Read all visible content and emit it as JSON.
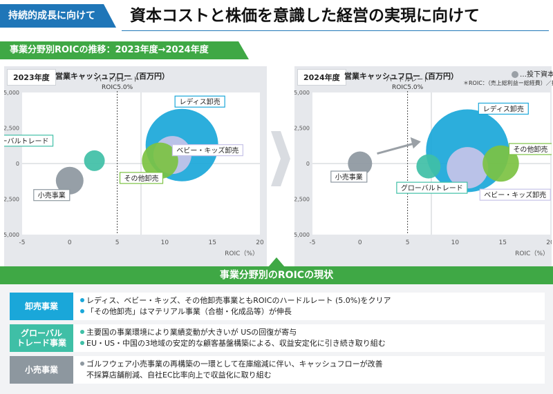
{
  "header": {
    "tag": "持続的成長に向けて",
    "title": "資本コストと株価を意識した経営の実現に向けて"
  },
  "section_title": "事業分野別ROICの推移：2023年度→2024年度",
  "legend": {
    "label": "…投下資本",
    "note": "＊ROIC：（売上総利益ー総経費）／投下資本"
  },
  "chart_data": [
    {
      "type": "scatter",
      "subtype": "bubble",
      "year_label": "2023年度",
      "ylabel": "営業キャッシュフロー（百万円）",
      "xlabel": "ROIC（%）",
      "xlim": [
        -5,
        20
      ],
      "ylim": [
        -5000,
        5000
      ],
      "xticks": [
        "-5",
        "0",
        "5",
        "10",
        "15",
        "20"
      ],
      "yticks": [
        "5,000",
        "2,500",
        "0",
        "-2,500",
        "-5,000"
      ],
      "hurdle": {
        "label1": "ハードルレート",
        "label2": "ROIC5.0%",
        "x": 5
      },
      "series": [
        {
          "name": "レディス卸売",
          "x": 11.8,
          "y": 1300,
          "size": 4.2,
          "color": "#1aa7d9"
        },
        {
          "name": "ベビー・キッズ卸売",
          "x": 10.8,
          "y": 600,
          "size": 2.2,
          "color": "#c7c3e8"
        },
        {
          "name": "その他卸売",
          "x": 9.5,
          "y": 200,
          "size": 2.1,
          "color": "#7cc242"
        },
        {
          "name": "グローバルトレード",
          "x": 2.6,
          "y": 200,
          "size": 1.2,
          "color": "#3fbfa6"
        },
        {
          "name": "小売事業",
          "x": 0,
          "y": -1200,
          "size": 1.6,
          "color": "#8d979f"
        }
      ]
    },
    {
      "type": "scatter",
      "subtype": "bubble",
      "year_label": "2024年度",
      "ylabel": "営業キャッシュフロー（百万円）",
      "xlabel": "ROIC（%）",
      "xlim": [
        -5,
        20
      ],
      "ylim": [
        -5000,
        5000
      ],
      "xticks": [
        "-5",
        "0",
        "5",
        "10",
        "15",
        "20"
      ],
      "yticks": [
        "5,000",
        "2,500",
        "0",
        "-2,500",
        "-5,000"
      ],
      "hurdle": {
        "label1": "ハードルレート",
        "label2": "ROIC5.0%",
        "x": 5
      },
      "series": [
        {
          "name": "レディス卸売",
          "x": 11.3,
          "y": 900,
          "size": 4.8,
          "color": "#1aa7d9"
        },
        {
          "name": "ベビー・キッズ卸売",
          "x": 11.3,
          "y": -300,
          "size": 2.4,
          "color": "#c7c3e8"
        },
        {
          "name": "その他卸売",
          "x": 14.8,
          "y": 0,
          "size": 2.1,
          "color": "#7cc242"
        },
        {
          "name": "グローバルトレード",
          "x": 7.2,
          "y": -200,
          "size": 1.4,
          "color": "#3fbfa6"
        },
        {
          "name": "小売事業",
          "x": 0,
          "y": 0,
          "size": 1.4,
          "color": "#8d979f"
        }
      ]
    }
  ],
  "status": {
    "title": "事業分野別のROICの現状",
    "rows": [
      {
        "label": "卸売事業",
        "color": "#1aa7d9",
        "lines": [
          "レディス、ベビー・キッズ、その他卸売事業ともROICのハードルレート (5.0%)をクリア",
          "「その他卸売」はマテリアル事業（合樹・化成品等）が伸長"
        ]
      },
      {
        "label": "グローバル トレード事業",
        "label_lines": [
          "グローバル",
          "トレード事業"
        ],
        "color": "#3fbfa6",
        "lines": [
          "主要国の事業環境により業績変動が大きいが USの回復が寄与",
          "EU・US・中国の3地域の安定的な顧客基盤構築による、収益安定化に引き続き取り組む"
        ]
      },
      {
        "label": "小売事業",
        "color": "#8d979f",
        "lines": [
          "ゴルフウェア小売事業の再構築の一環として在庫縮減に伴い、キャッシュフローが改善",
          "不採算店舗削減、自社EC比率向上で収益化に取り組む"
        ]
      }
    ]
  }
}
